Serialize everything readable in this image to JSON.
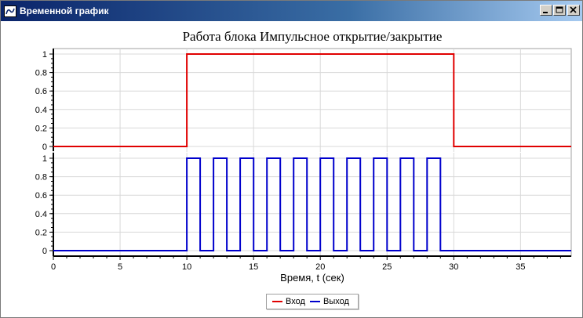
{
  "window": {
    "title": "Временной график"
  },
  "icons": {
    "app": "chart-app-icon",
    "minimize": "minimize-icon",
    "maximize": "maximize-icon",
    "close": "close-icon"
  },
  "chart_data": {
    "type": "line",
    "title": "Работа блока Импульсное открытие/закрытие",
    "xlabel": "Время, t (сек)",
    "xlim": [
      0,
      38.8
    ],
    "x_ticks": [
      0,
      5,
      10,
      15,
      20,
      25,
      30,
      35
    ],
    "grid": true,
    "legend_placement": "bottom-center",
    "panels": [
      {
        "ylim": [
          0,
          1
        ],
        "y_ticks": [
          0,
          0.2,
          0.4,
          0.6,
          0.8,
          1
        ],
        "series": [
          {
            "name": "Вход",
            "color": "#e00000",
            "x": [
              0,
              10,
              10,
              30,
              30,
              38.8
            ],
            "y": [
              0,
              0,
              1,
              1,
              0,
              0
            ]
          }
        ]
      },
      {
        "ylim": [
          0,
          1
        ],
        "y_ticks": [
          0,
          0.2,
          0.4,
          0.6,
          0.8,
          1
        ],
        "series": [
          {
            "name": "Выход",
            "color": "#0000cc",
            "x": [
              0,
              10,
              10,
              11,
              11,
              12,
              12,
              13,
              13,
              14,
              14,
              15,
              15,
              16,
              16,
              17,
              17,
              18,
              18,
              19,
              19,
              20,
              20,
              21,
              21,
              22,
              22,
              23,
              23,
              24,
              24,
              25,
              25,
              26,
              26,
              27,
              27,
              28,
              28,
              29,
              29,
              38.8
            ],
            "y": [
              0,
              0,
              1,
              1,
              0,
              0,
              1,
              1,
              0,
              0,
              1,
              1,
              0,
              0,
              1,
              1,
              0,
              0,
              1,
              1,
              0,
              0,
              1,
              1,
              0,
              0,
              1,
              1,
              0,
              0,
              1,
              1,
              0,
              0,
              1,
              1,
              0,
              0,
              1,
              1,
              0,
              0
            ]
          }
        ]
      }
    ]
  }
}
